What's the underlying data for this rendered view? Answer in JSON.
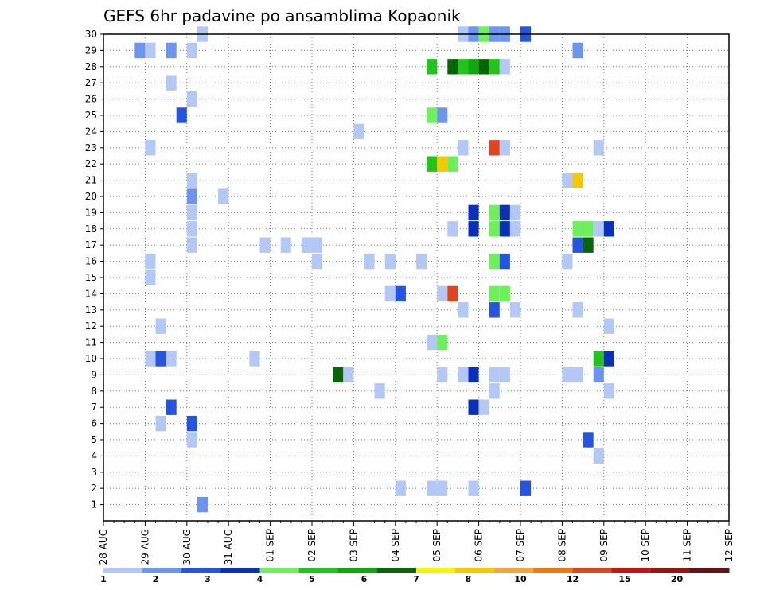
{
  "chart_data": {
    "type": "heatmap",
    "title": "GEFS 6hr padavine po ansamblima Kopaonik",
    "x_ticks": [
      "28 AUG",
      "29 AUG",
      "30 AUG",
      "31 AUG",
      "01 SEP",
      "02 SEP",
      "03 SEP",
      "04 SEP",
      "05 SEP",
      "06 SEP",
      "07 SEP",
      "08 SEP",
      "09 SEP",
      "10 SEP",
      "11 SEP",
      "12 SEP"
    ],
    "y_ticks": [
      "1",
      "2",
      "3",
      "4",
      "5",
      "6",
      "7",
      "8",
      "9",
      "10",
      "11",
      "12",
      "13",
      "14",
      "15",
      "16",
      "17",
      "18",
      "19",
      "20",
      "21",
      "22",
      "23",
      "24",
      "25",
      "26",
      "27",
      "28",
      "29",
      "30"
    ],
    "xlim": [
      0,
      60
    ],
    "ylim": [
      0,
      30
    ],
    "grid": true,
    "colorbar": {
      "labels": [
        "1",
        "2",
        "3",
        "4",
        "5",
        "6",
        "7",
        "8",
        "10",
        "12",
        "15",
        "20"
      ],
      "colors": [
        "#b3c8f5",
        "#6c94f0",
        "#2554e0",
        "#0a2fb8",
        "#6ef05a",
        "#22c41c",
        "#0fa80f",
        "#0a640a",
        "#f5f500",
        "#f5c800",
        "#f5a540",
        "#f07818",
        "#e0461e",
        "#c81414",
        "#961414",
        "#641414"
      ]
    },
    "cells": [
      {
        "x": 6,
        "member": 29,
        "c": 1
      },
      {
        "x": 9,
        "member": 30,
        "c": 0
      },
      {
        "x": 34,
        "member": 30,
        "c": 0
      },
      {
        "x": 35,
        "member": 30,
        "c": 1
      },
      {
        "x": 36,
        "member": 30,
        "c": 4
      },
      {
        "x": 37,
        "member": 30,
        "c": 1
      },
      {
        "x": 38,
        "member": 30,
        "c": 1
      },
      {
        "x": 40,
        "member": 30,
        "c": 2
      },
      {
        "x": 3,
        "member": 29,
        "c": 1
      },
      {
        "x": 4,
        "member": 29,
        "c": 0
      },
      {
        "x": 8,
        "member": 29,
        "c": 0
      },
      {
        "x": 45,
        "member": 29,
        "c": 1
      },
      {
        "x": 31,
        "member": 28,
        "c": 5
      },
      {
        "x": 33,
        "member": 28,
        "c": 7
      },
      {
        "x": 34,
        "member": 28,
        "c": 5
      },
      {
        "x": 35,
        "member": 28,
        "c": 6
      },
      {
        "x": 36,
        "member": 28,
        "c": 7
      },
      {
        "x": 37,
        "member": 28,
        "c": 5
      },
      {
        "x": 38,
        "member": 28,
        "c": 0
      },
      {
        "x": 6,
        "member": 27,
        "c": 0
      },
      {
        "x": 8,
        "member": 26,
        "c": 0
      },
      {
        "x": 7,
        "member": 25,
        "c": 2
      },
      {
        "x": 31,
        "member": 25,
        "c": 4
      },
      {
        "x": 32,
        "member": 25,
        "c": 1
      },
      {
        "x": 24,
        "member": 24,
        "c": 0
      },
      {
        "x": 4,
        "member": 23,
        "c": 0
      },
      {
        "x": 34,
        "member": 23,
        "c": 0
      },
      {
        "x": 37,
        "member": 23,
        "c": 12
      },
      {
        "x": 38,
        "member": 23,
        "c": 0
      },
      {
        "x": 47,
        "member": 23,
        "c": 0
      },
      {
        "x": 31,
        "member": 22,
        "c": 5
      },
      {
        "x": 32,
        "member": 22,
        "c": 9
      },
      {
        "x": 33,
        "member": 22,
        "c": 4
      },
      {
        "x": 8,
        "member": 21,
        "c": 0
      },
      {
        "x": 44,
        "member": 21,
        "c": 0
      },
      {
        "x": 45,
        "member": 21,
        "c": 9
      },
      {
        "x": 8,
        "member": 20,
        "c": 1
      },
      {
        "x": 11,
        "member": 20,
        "c": 0
      },
      {
        "x": 8,
        "member": 19,
        "c": 0
      },
      {
        "x": 35,
        "member": 19,
        "c": 3
      },
      {
        "x": 37,
        "member": 19,
        "c": 4
      },
      {
        "x": 38,
        "member": 19,
        "c": 3
      },
      {
        "x": 39,
        "member": 19,
        "c": 0
      },
      {
        "x": 8,
        "member": 18,
        "c": 0
      },
      {
        "x": 33,
        "member": 18,
        "c": 0
      },
      {
        "x": 35,
        "member": 18,
        "c": 3
      },
      {
        "x": 37,
        "member": 18,
        "c": 4
      },
      {
        "x": 38,
        "member": 18,
        "c": 3
      },
      {
        "x": 39,
        "member": 18,
        "c": 0
      },
      {
        "x": 45,
        "member": 18,
        "c": 4
      },
      {
        "x": 46,
        "member": 18,
        "c": 4
      },
      {
        "x": 47,
        "member": 18,
        "c": 0
      },
      {
        "x": 48,
        "member": 18,
        "c": 3
      },
      {
        "x": 8,
        "member": 17,
        "c": 0
      },
      {
        "x": 15,
        "member": 17,
        "c": 0
      },
      {
        "x": 17,
        "member": 17,
        "c": 0
      },
      {
        "x": 19,
        "member": 17,
        "c": 0
      },
      {
        "x": 20,
        "member": 17,
        "c": 0
      },
      {
        "x": 45,
        "member": 17,
        "c": 2
      },
      {
        "x": 46,
        "member": 17,
        "c": 7
      },
      {
        "x": 4,
        "member": 16,
        "c": 0
      },
      {
        "x": 20,
        "member": 16,
        "c": 0
      },
      {
        "x": 25,
        "member": 16,
        "c": 0
      },
      {
        "x": 27,
        "member": 16,
        "c": 0
      },
      {
        "x": 30,
        "member": 16,
        "c": 0
      },
      {
        "x": 37,
        "member": 16,
        "c": 4
      },
      {
        "x": 38,
        "member": 16,
        "c": 2
      },
      {
        "x": 44,
        "member": 16,
        "c": 0
      },
      {
        "x": 4,
        "member": 15,
        "c": 0
      },
      {
        "x": 27,
        "member": 14,
        "c": 0
      },
      {
        "x": 28,
        "member": 14,
        "c": 2
      },
      {
        "x": 32,
        "member": 14,
        "c": 0
      },
      {
        "x": 33,
        "member": 14,
        "c": 12
      },
      {
        "x": 37,
        "member": 14,
        "c": 4
      },
      {
        "x": 38,
        "member": 14,
        "c": 4
      },
      {
        "x": 34,
        "member": 13,
        "c": 0
      },
      {
        "x": 37,
        "member": 13,
        "c": 2
      },
      {
        "x": 39,
        "member": 13,
        "c": 0
      },
      {
        "x": 45,
        "member": 13,
        "c": 0
      },
      {
        "x": 5,
        "member": 12,
        "c": 0
      },
      {
        "x": 48,
        "member": 12,
        "c": 0
      },
      {
        "x": 31,
        "member": 11,
        "c": 0
      },
      {
        "x": 32,
        "member": 11,
        "c": 4
      },
      {
        "x": 4,
        "member": 10,
        "c": 0
      },
      {
        "x": 5,
        "member": 10,
        "c": 2
      },
      {
        "x": 6,
        "member": 10,
        "c": 0
      },
      {
        "x": 14,
        "member": 10,
        "c": 0
      },
      {
        "x": 47,
        "member": 10,
        "c": 5
      },
      {
        "x": 48,
        "member": 10,
        "c": 3
      },
      {
        "x": 22,
        "member": 9,
        "c": 7
      },
      {
        "x": 23,
        "member": 9,
        "c": 0
      },
      {
        "x": 32,
        "member": 9,
        "c": 0
      },
      {
        "x": 34,
        "member": 9,
        "c": 0
      },
      {
        "x": 35,
        "member": 9,
        "c": 3
      },
      {
        "x": 37,
        "member": 9,
        "c": 0
      },
      {
        "x": 38,
        "member": 9,
        "c": 0
      },
      {
        "x": 44,
        "member": 9,
        "c": 0
      },
      {
        "x": 45,
        "member": 9,
        "c": 0
      },
      {
        "x": 47,
        "member": 9,
        "c": 1
      },
      {
        "x": 26,
        "member": 8,
        "c": 0
      },
      {
        "x": 37,
        "member": 8,
        "c": 0
      },
      {
        "x": 48,
        "member": 8,
        "c": 0
      },
      {
        "x": 6,
        "member": 7,
        "c": 2
      },
      {
        "x": 35,
        "member": 7,
        "c": 3
      },
      {
        "x": 36,
        "member": 7,
        "c": 0
      },
      {
        "x": 5,
        "member": 6,
        "c": 0
      },
      {
        "x": 8,
        "member": 6,
        "c": 2
      },
      {
        "x": 8,
        "member": 5,
        "c": 0
      },
      {
        "x": 46,
        "member": 5,
        "c": 2
      },
      {
        "x": 47,
        "member": 4,
        "c": 0
      },
      {
        "x": 28,
        "member": 2,
        "c": 0
      },
      {
        "x": 31,
        "member": 2,
        "c": 0
      },
      {
        "x": 32,
        "member": 2,
        "c": 0
      },
      {
        "x": 35,
        "member": 2,
        "c": 0
      },
      {
        "x": 40,
        "member": 2,
        "c": 2
      },
      {
        "x": 9,
        "member": 1,
        "c": 1
      }
    ]
  }
}
